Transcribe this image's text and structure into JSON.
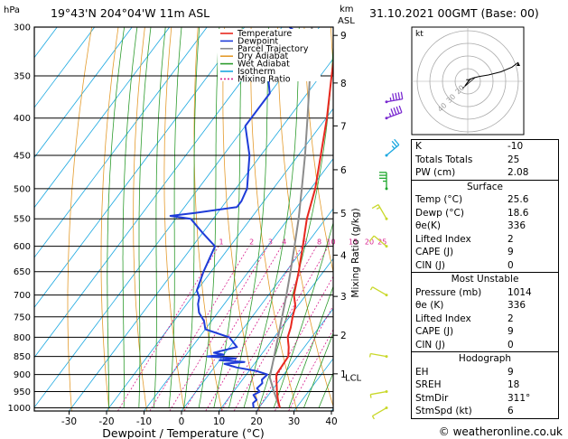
{
  "header": {
    "pressure_unit": "hPa",
    "location": "19°43'N  204°04'W  11m  ASL",
    "height_unit_km": "km",
    "height_unit_asl": "ASL",
    "datetime": "31.10.2021  00GMT  (Base: 00)"
  },
  "footer": {
    "copyright": "© weatheronline.co.uk"
  },
  "hodograph": {
    "unit_label": "kt",
    "ring_labels": [
      "40",
      "30",
      "20"
    ]
  },
  "indices": {
    "top": [
      {
        "label": "K",
        "value": "-10"
      },
      {
        "label": "Totals Totals",
        "value": "25"
      },
      {
        "label": "PW (cm)",
        "value": "2.08"
      }
    ],
    "surface": {
      "title": "Surface",
      "rows": [
        {
          "label": "Temp (°C)",
          "value": "25.6"
        },
        {
          "label": "Dewp (°C)",
          "value": "18.6"
        },
        {
          "label": "θe(K)",
          "value": "336"
        },
        {
          "label": "Lifted Index",
          "value": "2"
        },
        {
          "label": "CAPE (J)",
          "value": "9"
        },
        {
          "label": "CIN (J)",
          "value": "0"
        }
      ]
    },
    "most_unstable": {
      "title": "Most Unstable",
      "rows": [
        {
          "label": "Pressure (mb)",
          "value": "1014"
        },
        {
          "label": "θe (K)",
          "value": "336"
        },
        {
          "label": "Lifted Index",
          "value": "2"
        },
        {
          "label": "CAPE (J)",
          "value": "9"
        },
        {
          "label": "CIN (J)",
          "value": "0"
        }
      ]
    },
    "hodograph_block": {
      "title": "Hodograph",
      "rows": [
        {
          "label": "EH",
          "value": "9"
        },
        {
          "label": "SREH",
          "value": "18"
        },
        {
          "label": "StmDir",
          "value": "311°"
        },
        {
          "label": "StmSpd (kt)",
          "value": "6"
        }
      ]
    }
  },
  "chart_data": {
    "type": "line",
    "xlabel": "Dewpoint / Temperature (°C)",
    "ylabel_right": "Mixing Ratio (g/kg)",
    "x_ticks": [
      -30,
      -20,
      -10,
      0,
      10,
      20,
      30,
      40
    ],
    "xlim": [
      -35,
      40
    ],
    "pressure_ticks": [
      300,
      350,
      400,
      450,
      500,
      550,
      600,
      650,
      700,
      750,
      800,
      850,
      900,
      950,
      1000
    ],
    "ylim_hpa": [
      1010,
      300
    ],
    "km_ticks": [
      {
        "label": "9",
        "p": 308
      },
      {
        "label": "8",
        "p": 358
      },
      {
        "label": "7",
        "p": 410
      },
      {
        "label": "6",
        "p": 471
      },
      {
        "label": "5",
        "p": 540
      },
      {
        "label": "4",
        "p": 617
      },
      {
        "label": "3",
        "p": 703
      },
      {
        "label": "2",
        "p": 795
      },
      {
        "label": "1",
        "p": 898
      }
    ],
    "lcl_label": "LCL",
    "lcl_p": 908,
    "mixing_ratio_labels": [
      "1",
      "2",
      "3",
      "4",
      "6",
      "8",
      "10",
      "15",
      "20",
      "25"
    ],
    "mixing_ratio_label_p": 600,
    "legend": [
      {
        "name": "Temperature",
        "color": "#e8281f",
        "dash": ""
      },
      {
        "name": "Dewpoint",
        "color": "#1e3cd8",
        "dash": ""
      },
      {
        "name": "Parcel Trajectory",
        "color": "#8c8c8c",
        "dash": ""
      },
      {
        "name": "Dry Adiabat",
        "color": "#e49b2c",
        "dash": ""
      },
      {
        "name": "Wet Adiabat",
        "color": "#2e9c2e",
        "dash": ""
      },
      {
        "name": "Isotherm",
        "color": "#19a7e0",
        "dash": ""
      },
      {
        "name": "Mixing Ratio",
        "color": "#d8238f",
        "dash": "2,2"
      }
    ],
    "temperature": {
      "p": [
        1000,
        975,
        950,
        925,
        900,
        875,
        850,
        825,
        800,
        775,
        750,
        725,
        700,
        650,
        600,
        550,
        500,
        450,
        400,
        350,
        300
      ],
      "t": [
        25.6,
        23.5,
        21.6,
        19.8,
        18.0,
        17.8,
        17.6,
        15.8,
        13.6,
        12.4,
        10.8,
        9.4,
        6.8,
        3.4,
        -0.6,
        -5.0,
        -8.8,
        -14.0,
        -19.8,
        -27.0,
        -35.0
      ]
    },
    "dewpoint": {
      "p": [
        1000,
        985,
        975,
        960,
        950,
        940,
        925,
        915,
        900,
        890,
        880,
        870,
        865,
        860,
        855,
        850,
        845,
        840,
        825,
        800,
        780,
        760,
        740,
        720,
        705,
        690,
        650,
        600,
        575,
        550,
        545,
        540,
        530,
        520,
        500,
        450,
        410,
        400,
        370,
        345,
        340,
        335,
        330,
        320,
        310,
        300
      ],
      "t": [
        18.6,
        17.5,
        17.8,
        16.0,
        17.0,
        15.6,
        16.0,
        15.2,
        15.6,
        12.0,
        6.0,
        2.0,
        7.0,
        0.0,
        4.0,
        -4.0,
        0.0,
        -3.0,
        2.0,
        -2.0,
        -10.0,
        -12.0,
        -15.0,
        -17.0,
        -18.0,
        -20.0,
        -22.0,
        -24.0,
        -30.0,
        -36.0,
        -42.0,
        -36.0,
        -26.0,
        -26.0,
        -27.0,
        -33.0,
        -40.0,
        -40.0,
        -40.0,
        -45.0,
        -52.0,
        -56.0,
        -52.0,
        -50.0,
        -42.0,
        -48.0
      ]
    },
    "parcel": {
      "p": [
        1000,
        950,
        908,
        850,
        800,
        750,
        700,
        650,
        600,
        550,
        500,
        450,
        400,
        350,
        300
      ],
      "t": [
        25.6,
        20.8,
        16.8,
        13.8,
        11.0,
        8.0,
        4.8,
        1.2,
        -2.8,
        -7.2,
        -12.4,
        -18.2,
        -25.0,
        -32.8,
        -42.0
      ]
    },
    "wind_barbs": [
      {
        "p": 1000,
        "dir": 60,
        "spd": 5
      },
      {
        "p": 950,
        "dir": 80,
        "spd": 5
      },
      {
        "p": 850,
        "dir": 100,
        "spd": 5
      },
      {
        "p": 700,
        "dir": 120,
        "spd": 5
      },
      {
        "p": 600,
        "dir": 130,
        "spd": 10
      },
      {
        "p": 550,
        "dir": 150,
        "spd": 15
      },
      {
        "p": 500,
        "dir": 180,
        "spd": 35
      },
      {
        "p": 450,
        "dir": 230,
        "spd": 25
      },
      {
        "p": 400,
        "dir": 250,
        "spd": 45
      },
      {
        "p": 380,
        "dir": 260,
        "spd": 45
      }
    ],
    "hodograph_trace": [
      {
        "u": -0.5,
        "v": 0.5
      },
      {
        "u": 0.5,
        "v": 0.5
      },
      {
        "u": 1.5,
        "v": 1.0
      },
      {
        "u": 3.5,
        "v": 1.5
      },
      {
        "u": 6.5,
        "v": 2.0
      },
      {
        "u": 10.5,
        "v": 3.0
      },
      {
        "u": 14.0,
        "v": 4.5
      },
      {
        "u": 16.0,
        "v": 6.0
      }
    ]
  },
  "colors": {
    "temperature": "#e8281f",
    "dewpoint": "#1e3cd8",
    "parcel": "#8c8c8c",
    "dry_adiabat": "#e49b2c",
    "wet_adiabat": "#2e9c2e",
    "isotherm": "#19a7e0",
    "mixing_ratio": "#d8238f"
  }
}
